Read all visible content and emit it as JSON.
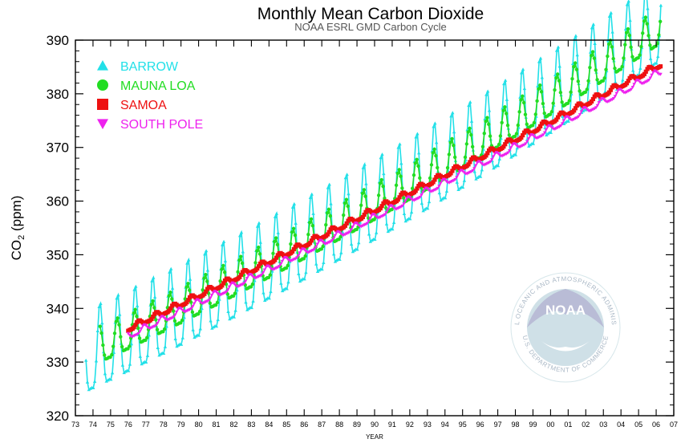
{
  "chart_data": {
    "type": "line",
    "title": "Monthly Mean Carbon Dioxide",
    "subtitle": "NOAA ESRL GMD Carbon Cycle",
    "xlabel": "YEAR",
    "ylabel_main": "CO",
    "ylabel_sub": "2",
    "ylabel_unit": "(ppm)",
    "xlim": [
      1973,
      2007
    ],
    "ylim": [
      320,
      390
    ],
    "yticks": [
      "320",
      "330",
      "340",
      "350",
      "360",
      "370",
      "380",
      "390"
    ],
    "xticks": [
      "73",
      "74",
      "75",
      "76",
      "77",
      "78",
      "79",
      "80",
      "81",
      "82",
      "83",
      "84",
      "85",
      "86",
      "87",
      "88",
      "89",
      "90",
      "91",
      "92",
      "93",
      "94",
      "95",
      "96",
      "97",
      "98",
      "99",
      "00",
      "01",
      "02",
      "03",
      "04",
      "05",
      "06",
      "07"
    ],
    "legend_position": "top-left",
    "grid": false,
    "series": [
      {
        "name": "BARROW",
        "color": "#22e0e8",
        "marker": "triangle-up",
        "start": 1973.6,
        "end": 2006.3,
        "base0": 329.0,
        "trend": 1.55,
        "amp": 7.6,
        "phase": 0.4,
        "curv": 0.01
      },
      {
        "name": "MAUNA LOA",
        "color": "#22dd22",
        "marker": "circle",
        "start": 1974.4,
        "end": 2006.3,
        "base0": 330.2,
        "trend": 1.52,
        "amp": 3.3,
        "phase": 0.38,
        "curv": 0.01
      },
      {
        "name": "SAMOA",
        "color": "#ee1111",
        "marker": "square",
        "start": 1976.0,
        "end": 2006.3,
        "base0": 331.6,
        "trend": 1.52,
        "amp": 0.5,
        "phase": 0.6,
        "curv": 0.003
      },
      {
        "name": "SOUTH POLE",
        "color": "#ee22ee",
        "marker": "triangle-down",
        "start": 1976.0,
        "end": 2006.3,
        "base0": 330.2,
        "trend": 1.52,
        "amp": 0.6,
        "phase": 0.9,
        "curv": 0.003
      }
    ]
  },
  "logo": {
    "name": "NOAA",
    "ring_text_top": "NATIONAL OCEANIC AND ATMOSPHERIC ADMINISTRATION",
    "ring_text_bottom": "U.S. DEPARTMENT OF COMMERCE"
  }
}
